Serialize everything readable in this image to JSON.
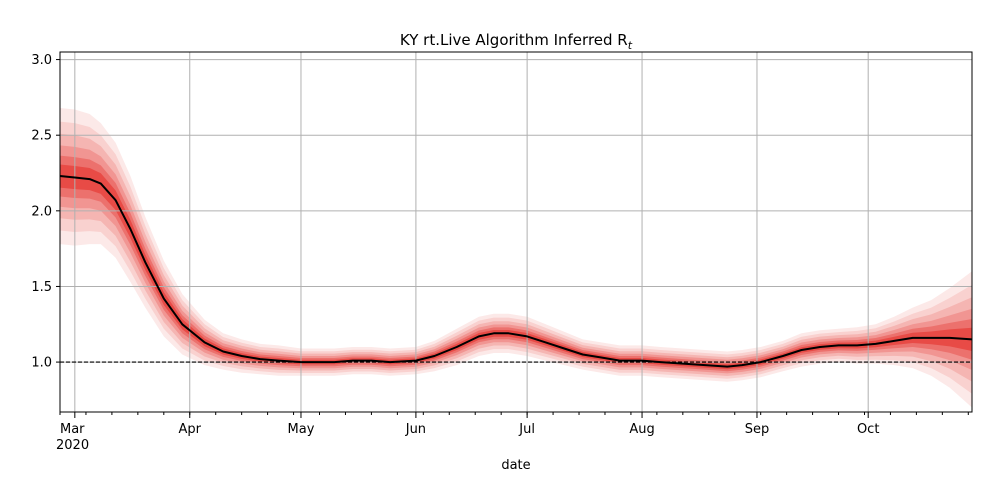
{
  "chart_data": {
    "type": "line",
    "title": "KY rt.Live Algorithm Inferred R",
    "title_subscript": "t",
    "xlabel": "date",
    "ylabel": "",
    "x_start": "2020-02-26",
    "x_end": "2020-10-29",
    "ylim": [
      0.67,
      3.05
    ],
    "yticks": [
      "1.0",
      "1.5",
      "2.0",
      "2.5",
      "3.0"
    ],
    "xticks": [
      {
        "date": "2020-03-01",
        "label": "Mar",
        "sublabel": "2020"
      },
      {
        "date": "2020-04-01",
        "label": "Apr"
      },
      {
        "date": "2020-05-01",
        "label": "May"
      },
      {
        "date": "2020-06-01",
        "label": "Jun"
      },
      {
        "date": "2020-07-01",
        "label": "Jul"
      },
      {
        "date": "2020-08-01",
        "label": "Aug"
      },
      {
        "date": "2020-09-01",
        "label": "Sep"
      },
      {
        "date": "2020-10-01",
        "label": "Oct"
      }
    ],
    "grid": true,
    "reference_line": 1.0,
    "colors": {
      "line": "#000000",
      "band": "#e3261f",
      "grid": "#b0b0b0",
      "reference": "#000000"
    },
    "series": [
      {
        "x": [
          "2020-02-26",
          "2020-03-01",
          "2020-03-05",
          "2020-03-08",
          "2020-03-12",
          "2020-03-16",
          "2020-03-20",
          "2020-03-25",
          "2020-03-30",
          "2020-04-05",
          "2020-04-10",
          "2020-04-15",
          "2020-04-20",
          "2020-04-25",
          "2020-05-01",
          "2020-05-10",
          "2020-05-15",
          "2020-05-20",
          "2020-05-25",
          "2020-06-01",
          "2020-06-06",
          "2020-06-12",
          "2020-06-18",
          "2020-06-22",
          "2020-06-26",
          "2020-07-01",
          "2020-07-06",
          "2020-07-11",
          "2020-07-16",
          "2020-07-21",
          "2020-07-26",
          "2020-08-01",
          "2020-08-06",
          "2020-08-12",
          "2020-08-18",
          "2020-08-24",
          "2020-08-28",
          "2020-09-02",
          "2020-09-08",
          "2020-09-13",
          "2020-09-18",
          "2020-09-23",
          "2020-09-28",
          "2020-10-03",
          "2020-10-08",
          "2020-10-13",
          "2020-10-18",
          "2020-10-23",
          "2020-10-29"
        ],
        "y": [
          2.23,
          2.22,
          2.21,
          2.18,
          2.07,
          1.88,
          1.66,
          1.42,
          1.25,
          1.13,
          1.07,
          1.04,
          1.02,
          1.01,
          1.0,
          1.0,
          1.01,
          1.01,
          1.0,
          1.01,
          1.04,
          1.1,
          1.17,
          1.19,
          1.19,
          1.17,
          1.13,
          1.09,
          1.05,
          1.03,
          1.01,
          1.01,
          1.0,
          0.99,
          0.98,
          0.97,
          0.98,
          1.0,
          1.04,
          1.08,
          1.1,
          1.11,
          1.11,
          1.12,
          1.14,
          1.16,
          1.16,
          1.16,
          1.15
        ],
        "band_halfwidth": [
          0.45,
          0.45,
          0.43,
          0.4,
          0.38,
          0.35,
          0.3,
          0.25,
          0.2,
          0.15,
          0.12,
          0.11,
          0.1,
          0.1,
          0.09,
          0.09,
          0.09,
          0.09,
          0.09,
          0.09,
          0.1,
          0.12,
          0.13,
          0.13,
          0.13,
          0.13,
          0.12,
          0.11,
          0.1,
          0.1,
          0.1,
          0.1,
          0.1,
          0.1,
          0.1,
          0.1,
          0.1,
          0.1,
          0.1,
          0.11,
          0.11,
          0.11,
          0.12,
          0.13,
          0.16,
          0.2,
          0.25,
          0.33,
          0.45
        ]
      }
    ]
  }
}
